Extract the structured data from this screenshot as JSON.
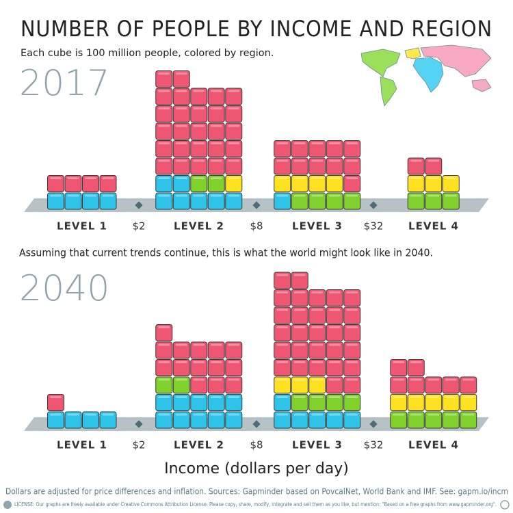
{
  "title": "NUMBER OF PEOPLE BY INCOME AND REGION",
  "subtitle": "Each cube is 100 million people, colored by region.",
  "note": "Assuming that current trends continue, this is what the world might look like in 2040.",
  "footnote": "Dollars are adjusted for price differences and inflation. Sources: Gapminder based on PovcalNet, World Bank and IMF. See: gapm.io/incm",
  "license": "LICENSE: Our graphs are freely available under Creative Commons Attribution License. Please copy, share, modify, integrate and sell them as you like, but mention: \"Based on a free graphs from www.gapminder.org\".",
  "chart_data": [
    {
      "type": "cube",
      "title": "2017",
      "categories": [
        "LEVEL 1",
        "LEVEL 2",
        "LEVEL 3",
        "LEVEL 4"
      ],
      "boundaries": [
        "$2",
        "$8",
        "$32"
      ],
      "series": [
        {
          "color": "#2ec4e9",
          "values": [
            4,
            7,
            1,
            0
          ]
        },
        {
          "color": "#80d12b",
          "values": [
            0,
            2,
            4,
            3
          ]
        },
        {
          "color": "#ffe11f",
          "values": [
            0,
            1,
            4,
            3
          ]
        },
        {
          "color": "#ef5671",
          "values": [
            4,
            27,
            11,
            2
          ]
        }
      ]
    },
    {
      "type": "cube",
      "title": "2040",
      "categories": [
        "LEVEL 1",
        "LEVEL 2",
        "LEVEL 3",
        "LEVEL 4"
      ],
      "boundaries": [
        "$2",
        "$8",
        "$32"
      ],
      "x_label": "Income (dollars per day)",
      "series": [
        {
          "color": "#2ec4e9",
          "values": [
            4,
            10,
            6,
            0
          ]
        },
        {
          "color": "#80d12b",
          "values": [
            0,
            2,
            4,
            5
          ]
        },
        {
          "color": "#ffe11f",
          "values": [
            0,
            0,
            3,
            5
          ]
        },
        {
          "color": "#ef5671",
          "values": [
            1,
            14,
            29,
            7
          ]
        }
      ]
    }
  ]
}
